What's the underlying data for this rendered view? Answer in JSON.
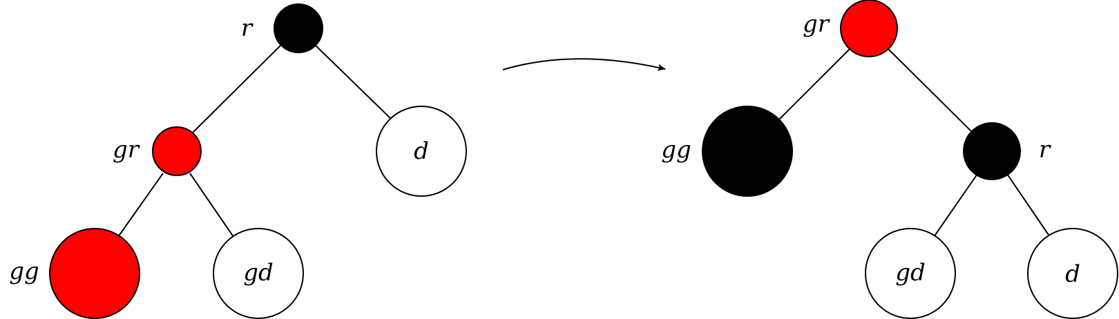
{
  "colors": {
    "red": "#ff0000",
    "black": "#000000",
    "white": "#ffffff"
  },
  "before_tree": {
    "nodes": [
      {
        "id": "r",
        "label": "r",
        "color": "black"
      },
      {
        "id": "gr",
        "label": "gr",
        "color": "red"
      },
      {
        "id": "d",
        "label": "d",
        "color": "white"
      },
      {
        "id": "gg",
        "label": "gg",
        "color": "red"
      },
      {
        "id": "gd",
        "label": "gd",
        "color": "white"
      }
    ],
    "edges": [
      [
        "r",
        "gr"
      ],
      [
        "r",
        "d"
      ],
      [
        "gr",
        "gg"
      ],
      [
        "gr",
        "gd"
      ]
    ]
  },
  "after_tree": {
    "nodes": [
      {
        "id": "gr",
        "label": "gr",
        "color": "red"
      },
      {
        "id": "gg",
        "label": "gg",
        "color": "black"
      },
      {
        "id": "r",
        "label": "r",
        "color": "black"
      },
      {
        "id": "gd",
        "label": "gd",
        "color": "white"
      },
      {
        "id": "d",
        "label": "d",
        "color": "white"
      }
    ],
    "edges": [
      [
        "gr",
        "gg"
      ],
      [
        "gr",
        "r"
      ],
      [
        "r",
        "gd"
      ],
      [
        "r",
        "d"
      ]
    ]
  },
  "arrow": {
    "icon": "curved-arrow-right-icon"
  }
}
